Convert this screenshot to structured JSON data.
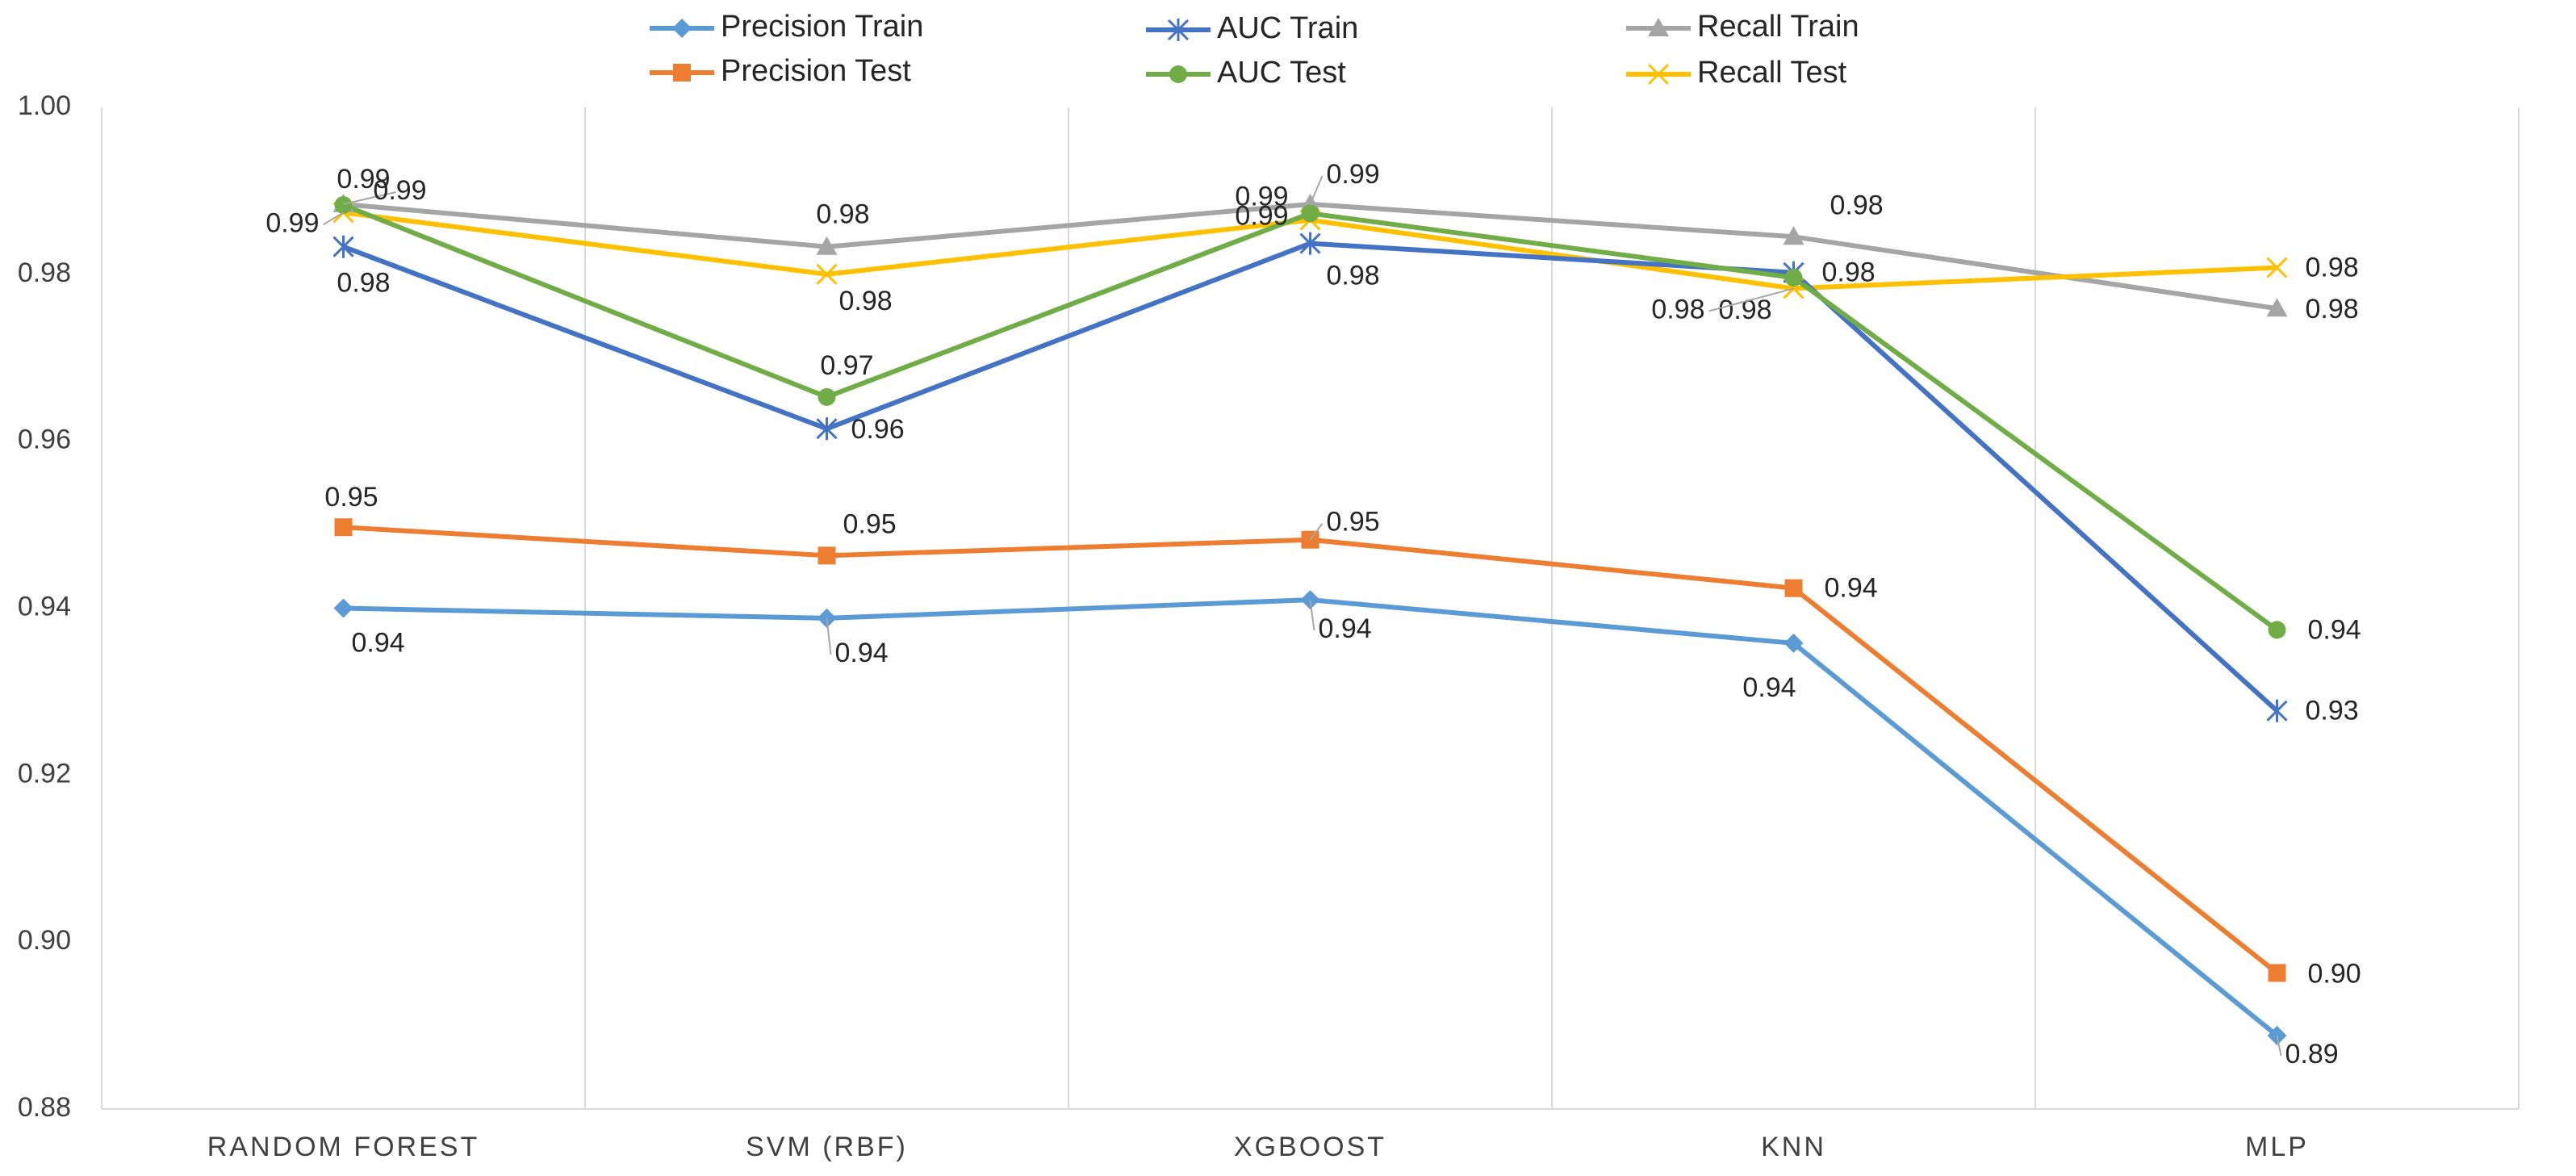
{
  "chart_data": {
    "type": "line",
    "title": "",
    "xlabel": "",
    "ylabel": "",
    "categories": [
      "RANDOM FOREST",
      "SVM (RBF)",
      "XGBOOST",
      "KNN",
      "MLP"
    ],
    "ylim": [
      0.88,
      1.0
    ],
    "yticks": [
      0.88,
      0.9,
      0.92,
      0.94,
      0.96,
      0.98,
      1.0
    ],
    "ytick_labels": [
      "0.88",
      "0.90",
      "0.92",
      "0.94",
      "0.96",
      "0.98",
      "1.00"
    ],
    "grid": "vertical separators between categories",
    "legend_position": "top",
    "series": [
      {
        "name": "Precision Train",
        "color": "#5B9BD5",
        "marker": "diamond",
        "values": [
          0.94,
          0.9388,
          0.941,
          0.9358,
          0.8888
        ],
        "labels": [
          "0.94",
          "0.94",
          "0.94",
          "0.94",
          "0.89"
        ]
      },
      {
        "name": "Precision Test",
        "color": "#ED7D31",
        "marker": "square",
        "values": [
          0.9497,
          0.9463,
          0.9482,
          0.9424,
          0.8963
        ],
        "labels": [
          "0.95",
          "0.95",
          "0.95",
          "0.94",
          "0.90"
        ]
      },
      {
        "name": "AUC Train",
        "color": "#4472C4",
        "marker": "asterisk",
        "values": [
          0.9833,
          0.9615,
          0.9837,
          0.9802,
          0.9277
        ],
        "labels": [
          "0.98",
          "0.96",
          "0.98",
          "0.98",
          "0.93"
        ]
      },
      {
        "name": "AUC Test",
        "color": "#70AD47",
        "marker": "circle",
        "values": [
          0.9883,
          0.9653,
          0.9873,
          0.9796,
          0.9374
        ],
        "labels": [
          "0.99",
          "0.97",
          "0.99",
          "0.98",
          "0.94"
        ]
      },
      {
        "name": "Recall Train",
        "color": "#A5A5A5",
        "marker": "triangle",
        "values": [
          0.9884,
          0.9833,
          0.9884,
          0.9845,
          0.9759
        ],
        "labels": [
          "0.99",
          "0.98",
          "0.99",
          "0.98",
          "0.98"
        ]
      },
      {
        "name": "Recall Test",
        "color": "#FFC000",
        "marker": "x",
        "values": [
          0.9874,
          0.98,
          0.9865,
          0.9783,
          0.9808
        ],
        "labels": [
          "0.99",
          "0.98",
          "0.99",
          "0.98",
          "0.98"
        ]
      }
    ]
  }
}
